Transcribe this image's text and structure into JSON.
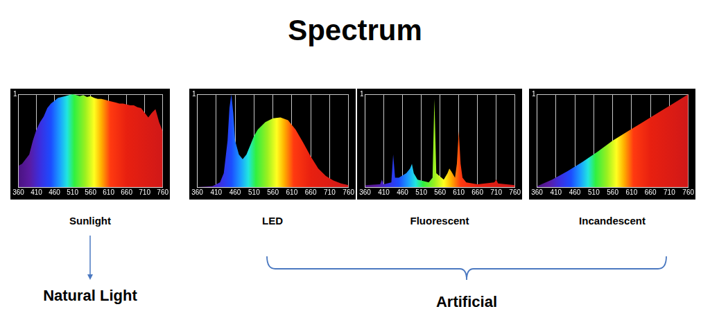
{
  "title": "Spectrum",
  "chart_data": [
    {
      "type": "area",
      "title": "Sunlight",
      "x": [
        360,
        370,
        380,
        390,
        400,
        410,
        420,
        430,
        440,
        450,
        460,
        470,
        480,
        490,
        500,
        510,
        520,
        530,
        540,
        550,
        560,
        570,
        580,
        590,
        600,
        610,
        620,
        630,
        640,
        650,
        660,
        670,
        680,
        690,
        700,
        710,
        720,
        730,
        740,
        750,
        760
      ],
      "values": [
        0.23,
        0.25,
        0.3,
        0.35,
        0.5,
        0.62,
        0.7,
        0.76,
        0.85,
        0.9,
        0.93,
        0.96,
        0.97,
        0.98,
        0.99,
        1.0,
        0.99,
        0.98,
        0.99,
        0.97,
        0.98,
        0.96,
        0.95,
        0.95,
        0.94,
        0.93,
        0.92,
        0.91,
        0.9,
        0.9,
        0.89,
        0.88,
        0.88,
        0.86,
        0.85,
        0.8,
        0.75,
        0.8,
        0.84,
        0.7,
        0.6
      ],
      "xlim": [
        360,
        760
      ],
      "xticks": [
        360,
        410,
        460,
        510,
        560,
        610,
        660,
        710,
        760
      ],
      "ylim": [
        0,
        1
      ],
      "yticks": [
        1
      ],
      "grid": true
    },
    {
      "type": "area",
      "title": "LED",
      "x": [
        360,
        400,
        420,
        430,
        440,
        445,
        450,
        455,
        460,
        470,
        480,
        490,
        500,
        510,
        520,
        540,
        560,
        580,
        600,
        620,
        640,
        660,
        680,
        700,
        720,
        740,
        760
      ],
      "values": [
        0.0,
        0.01,
        0.05,
        0.15,
        0.5,
        0.85,
        1.0,
        0.8,
        0.5,
        0.35,
        0.3,
        0.35,
        0.45,
        0.55,
        0.62,
        0.7,
        0.74,
        0.75,
        0.72,
        0.62,
        0.48,
        0.33,
        0.2,
        0.12,
        0.07,
        0.04,
        0.02
      ],
      "xlim": [
        360,
        760
      ],
      "xticks": [
        360,
        410,
        460,
        510,
        560,
        610,
        660,
        710,
        760
      ],
      "ylim": [
        0,
        1
      ],
      "yticks": [
        1
      ],
      "grid": true
    },
    {
      "type": "area",
      "title": "Fluorescent",
      "x": [
        360,
        400,
        405,
        410,
        430,
        435,
        440,
        450,
        470,
        480,
        485,
        490,
        500,
        530,
        540,
        545,
        550,
        570,
        580,
        585,
        590,
        600,
        605,
        610,
        615,
        620,
        630,
        660,
        705,
        710,
        715,
        760
      ],
      "values": [
        0.02,
        0.03,
        0.08,
        0.03,
        0.05,
        0.35,
        0.1,
        0.1,
        0.15,
        0.2,
        0.25,
        0.15,
        0.08,
        0.05,
        0.1,
        0.95,
        0.15,
        0.08,
        0.15,
        0.2,
        0.17,
        0.1,
        0.25,
        0.6,
        0.25,
        0.1,
        0.05,
        0.03,
        0.05,
        0.08,
        0.04,
        0.02
      ],
      "xlim": [
        360,
        760
      ],
      "xticks": [
        360,
        410,
        460,
        510,
        560,
        610,
        660,
        710,
        760
      ],
      "ylim": [
        0,
        1
      ],
      "yticks": [
        1
      ],
      "grid": true
    },
    {
      "type": "area",
      "title": "Incandescent",
      "x": [
        360,
        400,
        440,
        480,
        520,
        560,
        600,
        640,
        680,
        720,
        760
      ],
      "values": [
        0.01,
        0.08,
        0.17,
        0.27,
        0.38,
        0.5,
        0.6,
        0.7,
        0.8,
        0.9,
        1.0
      ],
      "xlim": [
        360,
        760
      ],
      "xticks": [
        360,
        410,
        460,
        510,
        560,
        610,
        660,
        710,
        760
      ],
      "ylim": [
        0,
        1
      ],
      "yticks": [
        1
      ],
      "grid": true
    }
  ],
  "groups": [
    {
      "label": "Natural Light",
      "members": [
        "Sunlight"
      ]
    },
    {
      "label": "Artificial",
      "members": [
        "LED",
        "Fluorescent",
        "Incandescent"
      ]
    }
  ]
}
